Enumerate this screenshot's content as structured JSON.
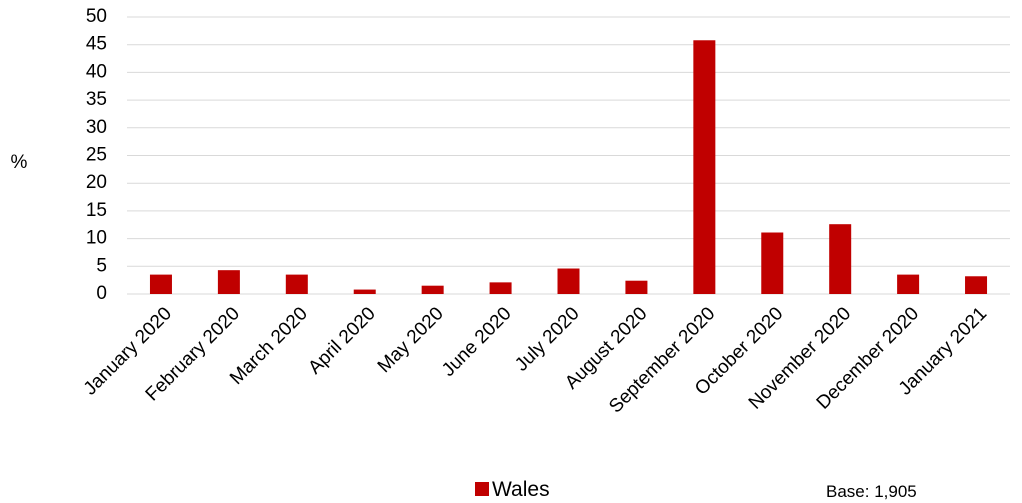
{
  "chart_data": {
    "type": "bar",
    "categories": [
      "January 2020",
      "February 2020",
      "March 2020",
      "April 2020",
      "May 2020",
      "June 2020",
      "July 2020",
      "August 2020",
      "September 2020",
      "October 2020",
      "November 2020",
      "December 2020",
      "January 2021"
    ],
    "series": [
      {
        "name": "Wales",
        "color": "#c00000",
        "values": [
          3.5,
          4.3,
          3.5,
          0.8,
          1.5,
          2.1,
          4.6,
          2.4,
          45.8,
          11.1,
          12.6,
          3.5,
          3.2
        ]
      }
    ],
    "ylabel": "%",
    "ylim": [
      0,
      50
    ],
    "yticks": [
      0,
      5,
      10,
      15,
      20,
      25,
      30,
      35,
      40,
      45,
      50
    ],
    "grid": true,
    "legend_position": "bottom",
    "annotation": "Base: 1,905"
  }
}
